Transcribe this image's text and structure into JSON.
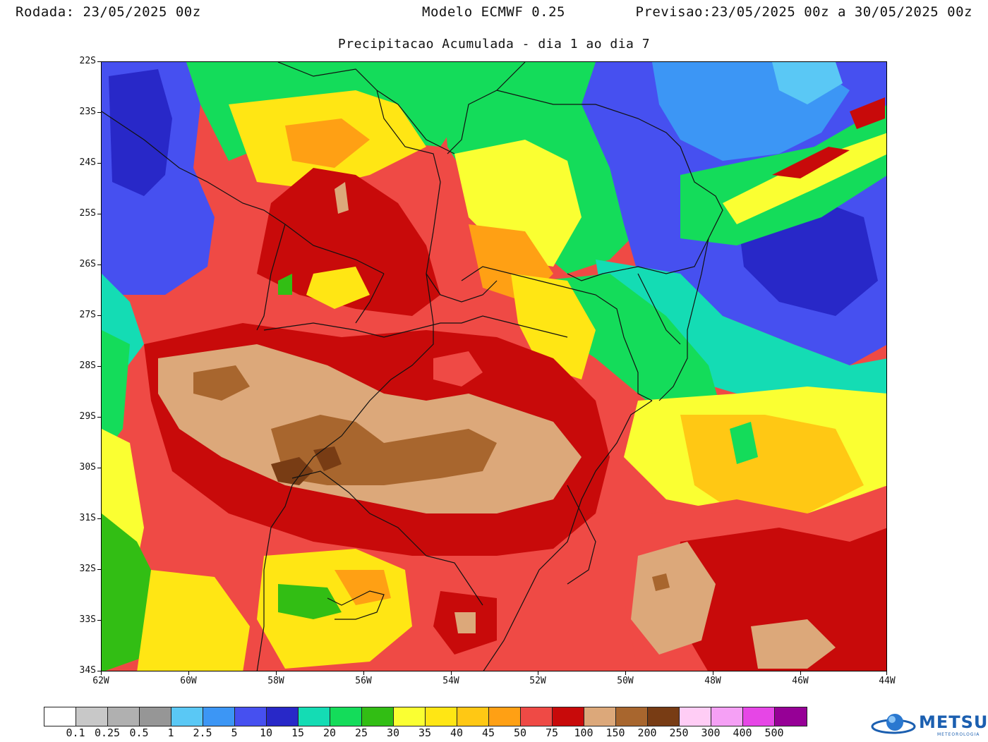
{
  "header": {
    "run_label": "Rodada:",
    "run_value": "23/05/2025 00z",
    "model": "Modelo ECMWF 0.25",
    "forecast_label": "Previsao:",
    "forecast_value": "23/05/2025 00z a 30/05/2025 00z"
  },
  "subtitle": "Precipitacao Acumulada - dia 1 ao dia 7",
  "axes": {
    "lat_labels": [
      "22S",
      "23S",
      "24S",
      "25S",
      "26S",
      "27S",
      "28S",
      "29S",
      "30S",
      "31S",
      "32S",
      "33S",
      "34S"
    ],
    "lon_labels": [
      "62W",
      "60W",
      "58W",
      "56W",
      "54W",
      "52W",
      "50W",
      "48W",
      "46W",
      "44W"
    ]
  },
  "colorbar": {
    "colors": [
      "#ffffff",
      "#c8c8c8",
      "#b0b0b0",
      "#969696",
      "#5ac8f5",
      "#3c96f5",
      "#4650f0",
      "#2828c8",
      "#14dcb4",
      "#14dc5a",
      "#32be14",
      "#faff32",
      "#ffe614",
      "#ffc814",
      "#ffa014",
      "#ef4a45",
      "#c80a0a",
      "#dca87a",
      "#a8662e",
      "#783c14",
      "#ffcdf5",
      "#f5a0f5",
      "#e646e6",
      "#960096"
    ],
    "labels": [
      "0.1",
      "0.25",
      "0.5",
      "1",
      "2.5",
      "5",
      "10",
      "15",
      "20",
      "25",
      "30",
      "35",
      "40",
      "45",
      "50",
      "75",
      "100",
      "150",
      "200",
      "250",
      "300",
      "400",
      "500"
    ]
  },
  "logo": {
    "name": "METSUL",
    "sub": "METEOROLOGIA"
  }
}
